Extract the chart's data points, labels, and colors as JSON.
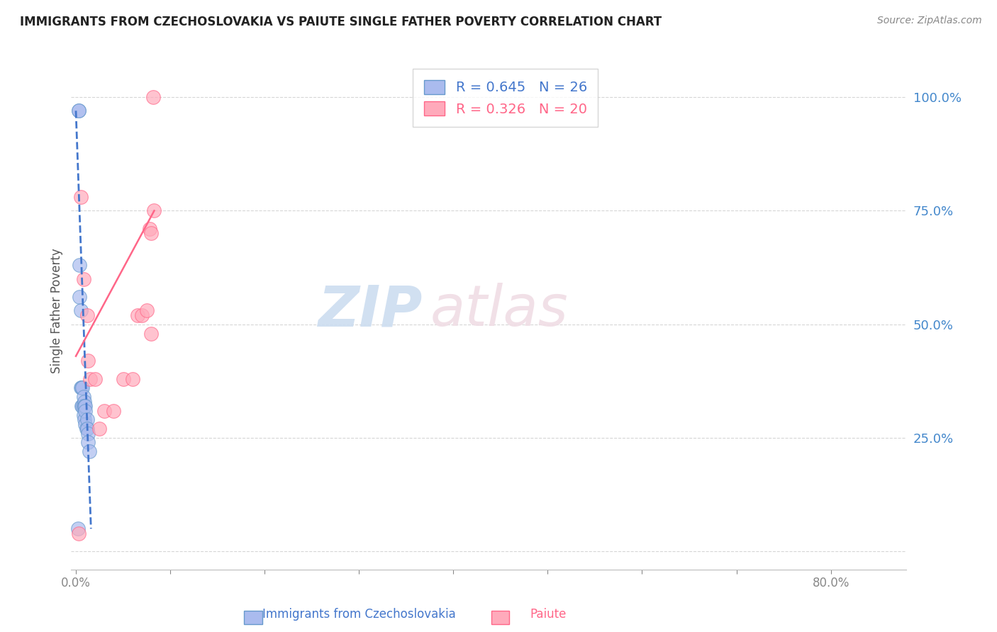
{
  "title": "IMMIGRANTS FROM CZECHOSLOVAKIA VS PAIUTE SINGLE FATHER POVERTY CORRELATION CHART",
  "source": "Source: ZipAtlas.com",
  "ylabel": "Single Father Poverty",
  "y_ticks": [
    0.0,
    0.25,
    0.5,
    0.75,
    1.0
  ],
  "y_tick_labels": [
    "",
    "25.0%",
    "50.0%",
    "75.0%",
    "100.0%"
  ],
  "x_ticks": [
    0.0,
    0.1,
    0.2,
    0.3,
    0.4,
    0.5,
    0.6,
    0.7,
    0.8
  ],
  "x_tick_labels": [
    "0.0%",
    "",
    "",
    "",
    "",
    "",
    "",
    "",
    "80.0%"
  ],
  "xlim": [
    -0.005,
    0.88
  ],
  "ylim": [
    -0.04,
    1.1
  ],
  "series1_color": "#aabbee",
  "series1_edge": "#6699cc",
  "series2_color": "#ffaabb",
  "series2_edge": "#ff6688",
  "trendline1_color": "#4477cc",
  "trendline2_color": "#ff6688",
  "blue_points_x": [
    0.002,
    0.003,
    0.003,
    0.004,
    0.004,
    0.005,
    0.005,
    0.006,
    0.006,
    0.007,
    0.007,
    0.008,
    0.008,
    0.008,
    0.009,
    0.009,
    0.009,
    0.01,
    0.01,
    0.01,
    0.011,
    0.012,
    0.012,
    0.013,
    0.013,
    0.014
  ],
  "blue_points_y": [
    0.05,
    0.97,
    0.97,
    0.63,
    0.56,
    0.53,
    0.36,
    0.36,
    0.32,
    0.36,
    0.32,
    0.34,
    0.32,
    0.3,
    0.33,
    0.32,
    0.29,
    0.32,
    0.31,
    0.28,
    0.27,
    0.29,
    0.27,
    0.26,
    0.24,
    0.22
  ],
  "pink_points_x": [
    0.003,
    0.005,
    0.008,
    0.012,
    0.013,
    0.015,
    0.02,
    0.025,
    0.03,
    0.04,
    0.05,
    0.06,
    0.065,
    0.07,
    0.075,
    0.078,
    0.08,
    0.08,
    0.082,
    0.083
  ],
  "pink_points_y": [
    0.04,
    0.78,
    0.6,
    0.52,
    0.42,
    0.38,
    0.38,
    0.27,
    0.31,
    0.31,
    0.38,
    0.38,
    0.52,
    0.52,
    0.53,
    0.71,
    0.7,
    0.48,
    1.0,
    0.75
  ],
  "trend1_x": [
    0.0,
    0.016
  ],
  "trend1_y": [
    0.97,
    0.05
  ],
  "trend2_x": [
    0.0,
    0.083
  ],
  "trend2_y": [
    0.43,
    0.75
  ],
  "legend_R1": "R = 0.645",
  "legend_N1": "N = 26",
  "legend_R2": "R = 0.326",
  "legend_N2": "N = 20",
  "legend_color1": "#4477cc",
  "legend_color2": "#ff6688",
  "bottom_label1": "Immigrants from Czechoslovakia",
  "bottom_label2": "Paiute",
  "watermark_zip_color": "#ccddf0",
  "watermark_atlas_color": "#f0dde5",
  "title_color": "#222222",
  "source_color": "#888888",
  "ylabel_color": "#555555",
  "ytick_color": "#4488cc",
  "xtick_color": "#888888",
  "grid_color": "#cccccc"
}
